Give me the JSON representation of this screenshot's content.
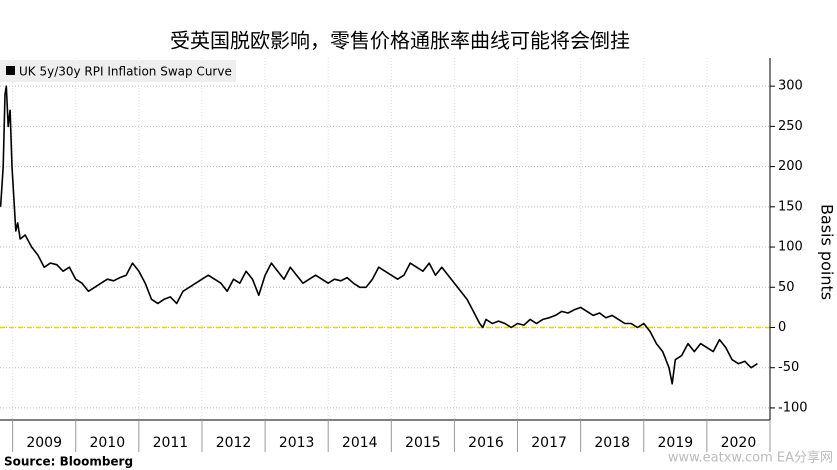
{
  "chart_data": {
    "type": "line",
    "title": "受英国脱欧影响，零售价格通胀率曲线可能将会倒挂",
    "y_label": "Basis points",
    "source": "Source: Bloomberg",
    "watermark": "www.eatxw.com  EA分享网",
    "xlim": [
      2008.8,
      2021.0
    ],
    "xticks": [
      2009,
      2010,
      2011,
      2012,
      2013,
      2014,
      2015,
      2016,
      2017,
      2018,
      2019,
      2020
    ],
    "ylim": [
      -115,
      335
    ],
    "yticks": [
      -100,
      -50,
      0,
      50,
      100,
      150,
      200,
      250,
      300
    ],
    "grid": true,
    "reference_line": {
      "value": 0,
      "color": "#e8d400"
    },
    "legend": "top-left",
    "series": [
      {
        "name": "UK 5y/30y RPI Inflation Swap Curve",
        "color": "#000000",
        "x": [
          2008.81,
          2008.85,
          2008.88,
          2008.9,
          2008.93,
          2008.96,
          2008.99,
          2009.02,
          2009.05,
          2009.08,
          2009.12,
          2009.2,
          2009.3,
          2009.4,
          2009.5,
          2009.6,
          2009.7,
          2009.8,
          2009.9,
          2010.0,
          2010.1,
          2010.2,
          2010.3,
          2010.4,
          2010.5,
          2010.6,
          2010.7,
          2010.8,
          2010.9,
          2011.0,
          2011.1,
          2011.2,
          2011.3,
          2011.4,
          2011.5,
          2011.6,
          2011.7,
          2011.8,
          2011.9,
          2012.0,
          2012.1,
          2012.2,
          2012.3,
          2012.4,
          2012.5,
          2012.6,
          2012.7,
          2012.8,
          2012.9,
          2013.0,
          2013.1,
          2013.2,
          2013.3,
          2013.4,
          2013.5,
          2013.6,
          2013.7,
          2013.8,
          2013.9,
          2014.0,
          2014.1,
          2014.2,
          2014.3,
          2014.4,
          2014.5,
          2014.6,
          2014.7,
          2014.8,
          2014.9,
          2015.0,
          2015.1,
          2015.2,
          2015.3,
          2015.4,
          2015.5,
          2015.6,
          2015.7,
          2015.8,
          2015.9,
          2016.0,
          2016.1,
          2016.2,
          2016.3,
          2016.4,
          2016.45,
          2016.5,
          2016.6,
          2016.7,
          2016.8,
          2016.9,
          2017.0,
          2017.1,
          2017.2,
          2017.3,
          2017.4,
          2017.5,
          2017.6,
          2017.7,
          2017.8,
          2017.9,
          2018.0,
          2018.1,
          2018.2,
          2018.3,
          2018.4,
          2018.5,
          2018.6,
          2018.7,
          2018.8,
          2018.9,
          2019.0,
          2019.1,
          2019.2,
          2019.3,
          2019.4,
          2019.45,
          2019.5,
          2019.6,
          2019.7,
          2019.8,
          2019.9,
          2020.0,
          2020.1,
          2020.2,
          2020.3,
          2020.4,
          2020.5,
          2020.6,
          2020.7,
          2020.8
        ],
        "values": [
          150,
          200,
          290,
          300,
          250,
          270,
          200,
          160,
          120,
          130,
          110,
          115,
          100,
          90,
          75,
          80,
          78,
          70,
          75,
          60,
          55,
          45,
          50,
          55,
          60,
          58,
          62,
          65,
          80,
          70,
          55,
          35,
          30,
          35,
          38,
          30,
          45,
          50,
          55,
          60,
          65,
          60,
          55,
          45,
          60,
          55,
          70,
          60,
          40,
          65,
          80,
          70,
          60,
          75,
          65,
          55,
          60,
          65,
          60,
          55,
          60,
          58,
          62,
          55,
          50,
          50,
          60,
          75,
          70,
          65,
          60,
          65,
          80,
          75,
          70,
          80,
          65,
          75,
          65,
          55,
          45,
          35,
          20,
          5,
          0,
          10,
          5,
          8,
          5,
          0,
          5,
          3,
          10,
          5,
          10,
          12,
          15,
          20,
          18,
          22,
          25,
          20,
          15,
          18,
          12,
          15,
          10,
          5,
          5,
          0,
          5,
          -5,
          -20,
          -30,
          -50,
          -70,
          -40,
          -35,
          -20,
          -30,
          -20,
          -25,
          -30,
          -15,
          -25,
          -40,
          -45,
          -42,
          -50,
          -45
        ]
      }
    ]
  }
}
